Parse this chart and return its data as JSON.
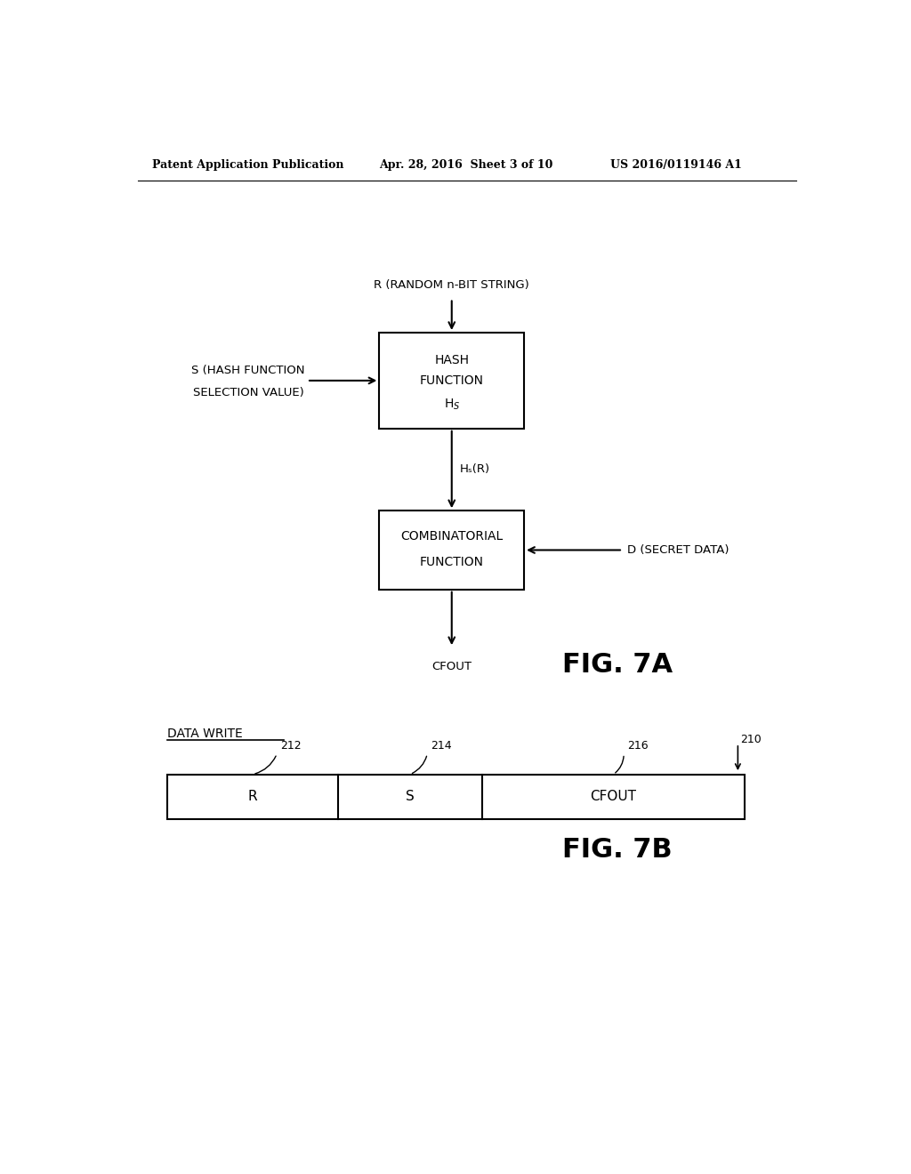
{
  "bg_color": "#ffffff",
  "header_left": "Patent Application Publication",
  "header_mid": "Apr. 28, 2016  Sheet 3 of 10",
  "header_right": "US 2016/0119146 A1",
  "fig7a_label": "FIG. 7A",
  "fig7b_label": "FIG. 7B",
  "r_label": "R (RANDOM n-BIT STRING)",
  "s_label_1": "S (HASH FUNCTION",
  "s_label_2": "SELECTION VALUE)",
  "hs_r_label": "Hₛ(R)",
  "d_label": "D (SECRET DATA)",
  "cfout_label": "CFOUT",
  "data_write_label": "DATA WRITE",
  "r_field": "R",
  "s_field": "S",
  "cfout_field": "CFOUT",
  "label_212": "212",
  "label_214": "214",
  "label_216": "216",
  "label_210": "210"
}
